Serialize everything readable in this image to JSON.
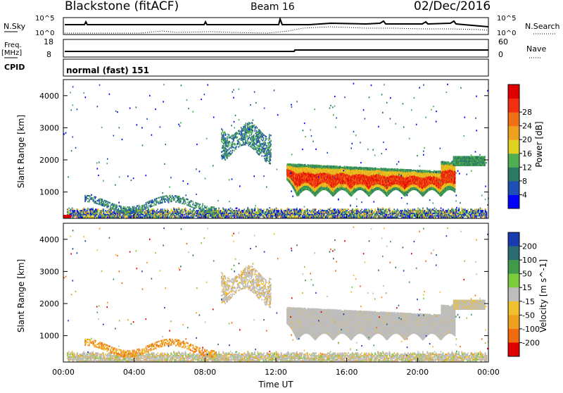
{
  "header": {
    "station": "Blackstone (fitACF)",
    "beam": "Beam 16",
    "date": "02/Dec/2016"
  },
  "info_panels": {
    "nsky_label": "N.Sky",
    "nsearch_label": "N.Search",
    "nsky_ticks": [
      "10^5",
      "10^0"
    ],
    "nsearch_ticks": [
      "10^5",
      "10^0"
    ],
    "freq_label_1": "Freq.",
    "freq_label_2": "[MHz]",
    "freq_ticks": [
      "18",
      "8"
    ],
    "nave_label": "Nave",
    "nave_ticks": [
      "60",
      "0"
    ],
    "cpid_label": "CPID",
    "cpid_text": "normal (fast) 151"
  },
  "chart_data": [
    {
      "type": "heatmap",
      "name": "power",
      "ylabel": "Slant Range [km]",
      "yticks": [
        1000,
        2000,
        3000,
        4000
      ],
      "ylim": [
        180,
        4500
      ],
      "xlim_hours": [
        0,
        24
      ],
      "colorbar_label": "Power [dB]",
      "colorbar_ticks": [
        "4",
        "8",
        "12",
        "16",
        "20",
        "24",
        "28"
      ],
      "colorbar_colors": [
        "#0000ff",
        "#1e4fb4",
        "#2a7a64",
        "#4fae4f",
        "#e0d020",
        "#f0a020",
        "#f07018",
        "#f03010",
        "#e00000"
      ],
      "regions": [
        {
          "t0": 12.6,
          "t1": 22.1,
          "r_center": 1200,
          "level": "high (20-28 dB)"
        },
        {
          "t0": 8.9,
          "t1": 11.6,
          "r_center": 2600,
          "level": "low (4-12 dB)"
        },
        {
          "t0": 0,
          "t1": 0.4,
          "r_center": 250,
          "level": "high (28 dB)"
        }
      ]
    },
    {
      "type": "heatmap",
      "name": "velocity",
      "ylabel": "Slant Range [km]",
      "yticks": [
        1000,
        2000,
        3000,
        4000
      ],
      "ylim": [
        180,
        4500
      ],
      "xlim_hours": [
        0,
        24
      ],
      "colorbar_label": "Velocity [m s^-1]",
      "colorbar_ticks": [
        "200",
        "100",
        "50",
        "15",
        "-15",
        "-50",
        "-100",
        "-200"
      ],
      "colorbar_colors": [
        "#1a3ab0",
        "#2a6a70",
        "#3f9a4a",
        "#7acc3a",
        "#bdbdbd",
        "#f0c030",
        "#f0a020",
        "#f06a10",
        "#e00000"
      ],
      "regions": [
        {
          "t0": 12.6,
          "t1": 22.1,
          "r_center": 1200,
          "level": "ground scatter (grey)"
        },
        {
          "t0": 6.0,
          "t1": 8.6,
          "r_center": 750,
          "level": "-50 to -100"
        }
      ]
    }
  ],
  "x_axis": {
    "ticks": [
      "00:00",
      "04:00",
      "08:00",
      "12:00",
      "16:00",
      "20:00",
      "00:00"
    ],
    "label": "Time UT"
  },
  "colors": {
    "ground_scatter": "#bdbdbd",
    "frame": "#000000"
  }
}
